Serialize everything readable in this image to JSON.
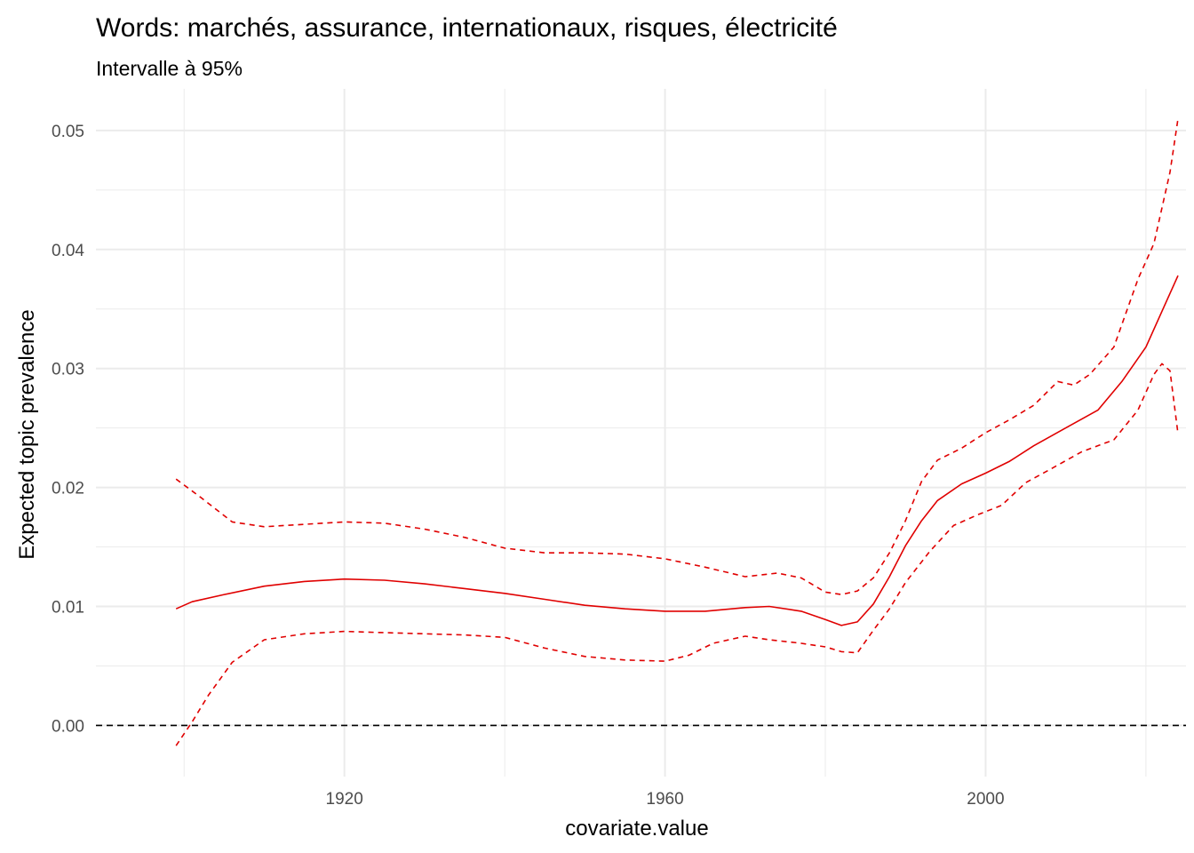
{
  "chart_data": {
    "type": "line",
    "title": "Words: marchés, assurance, internationaux, risques, électricité",
    "subtitle": "Intervalle à 95%",
    "xlabel": "covariate.value",
    "ylabel": "Expected topic prevalence",
    "xlim": [
      1889,
      2025
    ],
    "ylim": [
      -0.0043,
      0.0535
    ],
    "x_ticks": [
      1920,
      1960,
      2000
    ],
    "x_tick_labels": [
      "1920",
      "1960",
      "2000"
    ],
    "x_minor_ticks": [
      1900,
      1940,
      1980,
      2020
    ],
    "y_ticks": [
      0.0,
      0.01,
      0.02,
      0.03,
      0.04,
      0.05
    ],
    "y_tick_labels": [
      "0.00",
      "0.01",
      "0.02",
      "0.03",
      "0.04",
      "0.05"
    ],
    "y_minor_ticks": [
      0.005,
      0.015,
      0.025,
      0.035,
      0.045
    ],
    "grid": true,
    "reference_line": 0.0,
    "colors": {
      "series": "#e00000",
      "grid": "#ebebeb",
      "reference": "#000000",
      "background": "#ffffff"
    },
    "series": [
      {
        "role": "estimate",
        "style": "solid",
        "x": [
          1899,
          1901,
          1905,
          1910,
          1915,
          1920,
          1925,
          1930,
          1935,
          1940,
          1945,
          1950,
          1955,
          1960,
          1965,
          1970,
          1973,
          1977,
          1980,
          1982,
          1984,
          1986,
          1988,
          1990,
          1992,
          1994,
          1997,
          2000,
          2003,
          2006,
          2010,
          2014,
          2017,
          2020,
          2022,
          2024
        ],
        "y": [
          0.0098,
          0.0104,
          0.011,
          0.0117,
          0.0121,
          0.0123,
          0.0122,
          0.0119,
          0.0115,
          0.0111,
          0.0106,
          0.0101,
          0.0098,
          0.0096,
          0.0096,
          0.0099,
          0.01,
          0.0096,
          0.0089,
          0.0084,
          0.0087,
          0.0102,
          0.0125,
          0.0151,
          0.0172,
          0.0189,
          0.0203,
          0.0212,
          0.0222,
          0.0235,
          0.025,
          0.0265,
          0.0289,
          0.0318,
          0.0348,
          0.0378
        ]
      },
      {
        "role": "upper 95%",
        "style": "dashed",
        "x": [
          1899,
          1902,
          1906,
          1910,
          1915,
          1920,
          1925,
          1930,
          1935,
          1940,
          1945,
          1950,
          1955,
          1960,
          1965,
          1970,
          1974,
          1977,
          1980,
          1982,
          1984,
          1986,
          1988,
          1990,
          1992,
          1994,
          1997,
          2000,
          2003,
          2006,
          2009,
          2011,
          2013,
          2016,
          2019,
          2021,
          2023,
          2024
        ],
        "y": [
          0.0207,
          0.0192,
          0.0171,
          0.0167,
          0.0169,
          0.0171,
          0.017,
          0.0165,
          0.0158,
          0.0149,
          0.0145,
          0.0145,
          0.0144,
          0.014,
          0.0133,
          0.0125,
          0.0128,
          0.0124,
          0.0112,
          0.011,
          0.0113,
          0.0124,
          0.0145,
          0.0172,
          0.0205,
          0.0223,
          0.0233,
          0.0246,
          0.0257,
          0.0269,
          0.0289,
          0.0286,
          0.0295,
          0.0318,
          0.0375,
          0.0405,
          0.0465,
          0.051
        ]
      },
      {
        "role": "lower 95%",
        "style": "dashed",
        "x": [
          1899,
          1901,
          1903,
          1906,
          1910,
          1915,
          1920,
          1925,
          1930,
          1935,
          1940,
          1945,
          1950,
          1955,
          1960,
          1963,
          1966,
          1970,
          1973,
          1977,
          1980,
          1982,
          1984,
          1986,
          1988,
          1990,
          1993,
          1996,
          1999,
          2002,
          2005,
          2008,
          2012,
          2016,
          2019,
          2021,
          2022,
          2023,
          2024
        ],
        "y": [
          -0.0017,
          0.0003,
          0.0025,
          0.0053,
          0.0072,
          0.0077,
          0.0079,
          0.0078,
          0.0077,
          0.0076,
          0.0074,
          0.0065,
          0.0058,
          0.0055,
          0.0054,
          0.0059,
          0.0069,
          0.0075,
          0.0072,
          0.0069,
          0.0066,
          0.0062,
          0.0061,
          0.008,
          0.0098,
          0.012,
          0.0146,
          0.0168,
          0.0177,
          0.0185,
          0.0204,
          0.0215,
          0.023,
          0.024,
          0.0265,
          0.0295,
          0.0304,
          0.0298,
          0.0245
        ]
      }
    ]
  }
}
